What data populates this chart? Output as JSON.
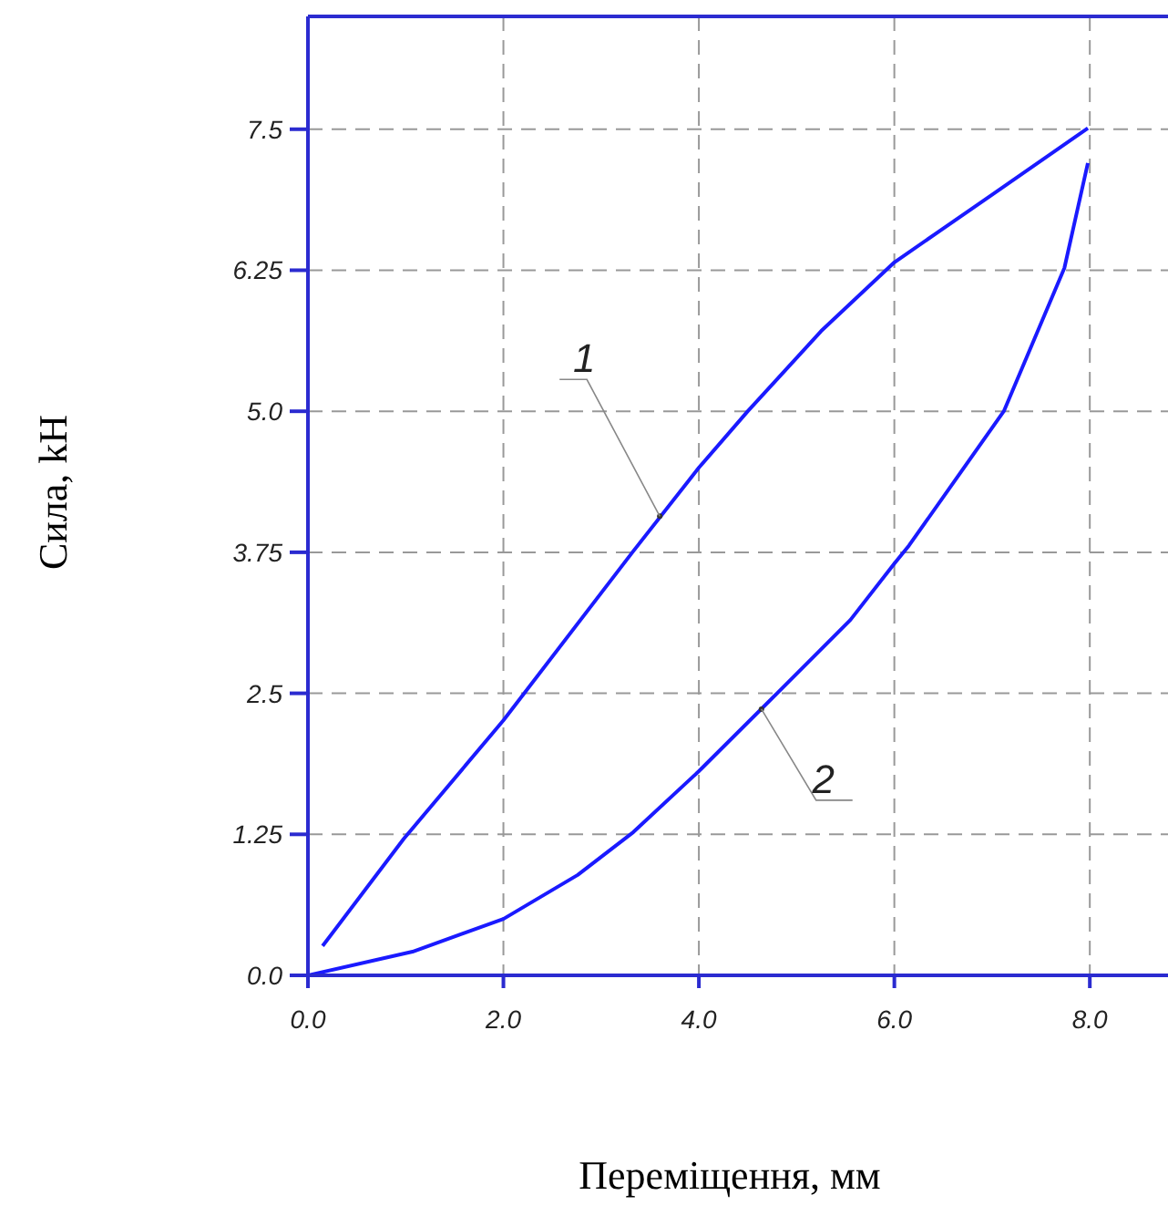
{
  "chart_data": {
    "type": "line",
    "xlabel": "Переміщення, мм",
    "ylabel": "Сила, kH",
    "series": [
      {
        "x": [
          0.15,
          0.98,
          2.0,
          3.32,
          4.0,
          4.5,
          5.25,
          6.0,
          7.0,
          7.98
        ],
        "values": [
          0.26,
          1.21,
          2.26,
          3.75,
          4.5,
          5.0,
          5.71,
          6.32,
          6.92,
          7.51
        ],
        "color": "#1a1aff"
      },
      {
        "x": [
          0.0,
          1.07,
          2.0,
          2.76,
          3.33,
          4.0,
          4.8,
          5.55,
          6.0,
          6.15,
          7.12,
          7.74,
          7.98
        ],
        "values": [
          0.0,
          0.21,
          0.5,
          0.89,
          1.27,
          1.81,
          2.5,
          3.15,
          3.65,
          3.81,
          5.0,
          6.27,
          7.2
        ],
        "color": "#1a1aff"
      }
    ],
    "xlim": [
      0,
      8.8
    ],
    "ylim": [
      0,
      8.5
    ],
    "xticks": [
      {
        "value": 0,
        "label": "0.0"
      },
      {
        "value": 2,
        "label": "2.0"
      },
      {
        "value": 4,
        "label": "4.0"
      },
      {
        "value": 6,
        "label": "6.0"
      },
      {
        "value": 8,
        "label": "8.0"
      }
    ],
    "yticks": [
      {
        "value": 0,
        "label": "0.0"
      },
      1.25,
      2.5,
      3.75,
      {
        "value": 5,
        "label": "5.0"
      },
      6.25,
      7.5
    ],
    "grid": true,
    "marker": "none",
    "line_style": "solid",
    "annotations": [
      {
        "text": "1",
        "x": 3.6,
        "y": 4.07
      },
      {
        "text": "2",
        "x": 4.64,
        "y": 2.36
      }
    ]
  }
}
